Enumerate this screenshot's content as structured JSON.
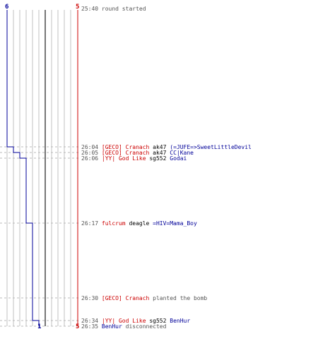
{
  "colors": {
    "red": "#cc0000",
    "blue": "#000099",
    "grid": "#c0c0c0",
    "dash": "#bbbbbb",
    "text": "#555555"
  },
  "axis": {
    "blue_start": "6",
    "red_start": "5",
    "blue_end": "1",
    "red_end": "5"
  },
  "chart_data": {
    "type": "line",
    "start_time": "25:40",
    "x": [
      "25:40",
      "26:04",
      "26:05",
      "26:06",
      "26:17",
      "26:30",
      "26:34"
    ],
    "series": [
      {
        "values": [
          6,
          5,
          4,
          3,
          2,
          2,
          1
        ]
      },
      {
        "values": [
          5,
          5,
          5,
          5,
          5,
          5,
          5
        ]
      }
    ],
    "ylim": [
      0,
      6
    ]
  },
  "events": [
    {
      "time": "25:40",
      "parts": [
        {
          "text": "round started",
          "color": "gray"
        }
      ]
    },
    {
      "time": "26:04",
      "parts": [
        {
          "text": "[GECO] Cranach",
          "color": "red"
        },
        {
          "text": " ak47 ",
          "color": "black"
        },
        {
          "text": "(=JUFE=>SweetLittleDevil",
          "color": "blue"
        }
      ]
    },
    {
      "time": "26:05",
      "parts": [
        {
          "text": "[GECO] Cranach",
          "color": "red"
        },
        {
          "text": " ak47 ",
          "color": "black"
        },
        {
          "text": "CC|Kane",
          "color": "blue"
        }
      ]
    },
    {
      "time": "26:06",
      "parts": [
        {
          "text": "|YY| God Like",
          "color": "red"
        },
        {
          "text": " sg552 ",
          "color": "black"
        },
        {
          "text": "Godai",
          "color": "blue"
        }
      ]
    },
    {
      "time": "26:17",
      "parts": [
        {
          "text": "fulcrum",
          "color": "red"
        },
        {
          "text": " deagle ",
          "color": "black"
        },
        {
          "text": "=HIV=Mama_Boy",
          "color": "blue"
        }
      ]
    },
    {
      "time": "26:30",
      "parts": [
        {
          "text": "[GECO] Cranach",
          "color": "red"
        },
        {
          "text": " planted the bomb",
          "color": "gray"
        }
      ]
    },
    {
      "time": "26:34",
      "parts": [
        {
          "text": "|YY| God Like",
          "color": "red"
        },
        {
          "text": " sg552 ",
          "color": "black"
        },
        {
          "text": "BenHur",
          "color": "blue"
        }
      ]
    },
    {
      "time": "26:35",
      "parts": [
        {
          "text": "BenHur",
          "color": "blue"
        },
        {
          "text": " disconnected",
          "color": "gray"
        }
      ]
    }
  ]
}
